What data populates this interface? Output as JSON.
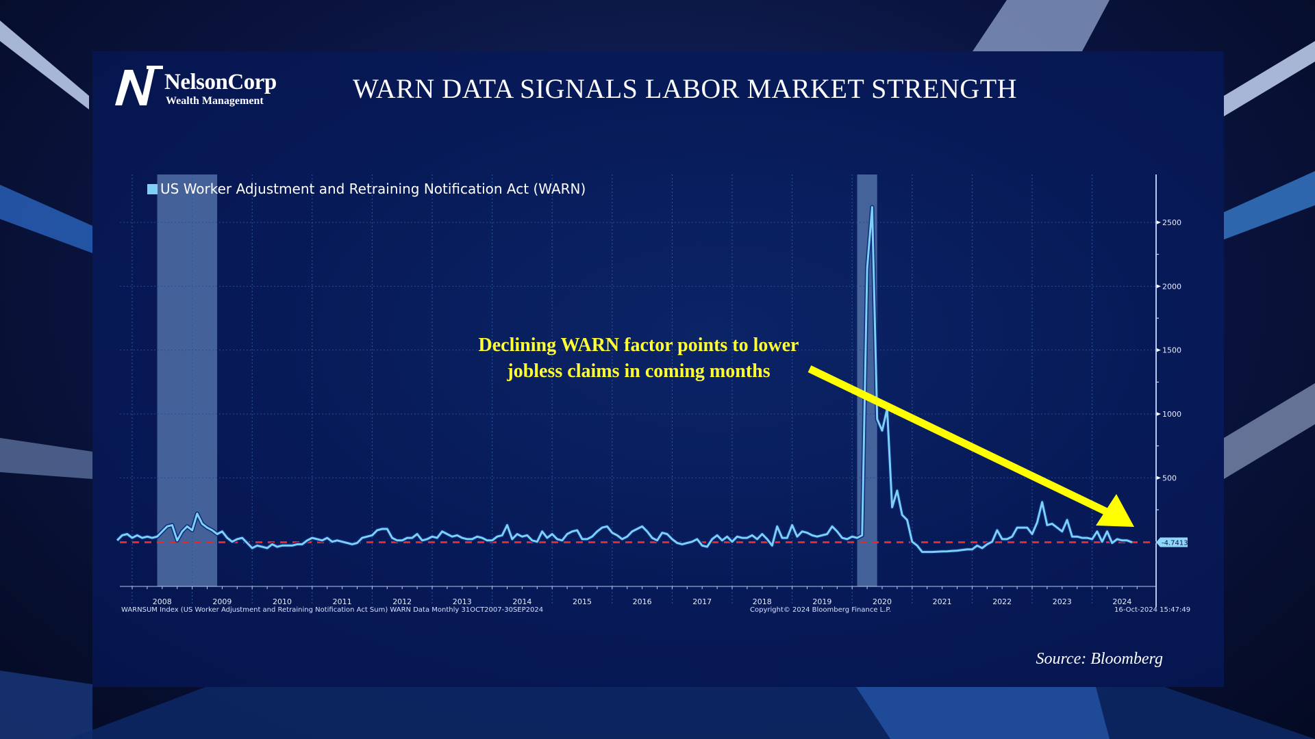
{
  "logo": {
    "name": "NelsonCorp",
    "subtitle": "Wealth Management"
  },
  "title": "WARN DATA SIGNALS LABOR MARKET STRENGTH",
  "annotation": {
    "line1": "Declining WARN factor points to lower",
    "line2": "jobless claims in coming months"
  },
  "source": "Source: Bloomberg",
  "footer": {
    "index_desc": "WARNSUM Index (US Worker Adjustment and Retraining Notification Act Sum) WARN Data  Monthly 31OCT2007-30SEP2024",
    "copyright": "Copyright© 2024 Bloomberg Finance L.P.",
    "timestamp": "16-Oct-2024 15:47:49"
  },
  "colors": {
    "line": "#7fd0f5",
    "reference": "#e8262b",
    "annotation": "#ffff33",
    "shading": "#5a7bb0",
    "background": "#06144c"
  },
  "chart_data": {
    "type": "line",
    "title": "",
    "legend_position": "top-left",
    "series": [
      {
        "name": "US Worker Adjustment and Retraining Notification Act (WARN)",
        "frequency": "monthly",
        "start": "2007-10",
        "values": [
          10,
          50,
          60,
          30,
          50,
          30,
          40,
          30,
          40,
          80,
          120,
          130,
          10,
          80,
          120,
          90,
          220,
          140,
          110,
          90,
          60,
          80,
          30,
          0,
          20,
          30,
          -10,
          -50,
          -30,
          -40,
          -50,
          -20,
          -40,
          -30,
          -30,
          -30,
          -20,
          -20,
          10,
          30,
          20,
          10,
          30,
          0,
          10,
          0,
          -10,
          -20,
          -10,
          30,
          40,
          50,
          90,
          100,
          100,
          30,
          10,
          10,
          30,
          30,
          60,
          10,
          20,
          40,
          30,
          80,
          60,
          40,
          50,
          30,
          20,
          20,
          40,
          30,
          10,
          10,
          40,
          50,
          130,
          20,
          60,
          40,
          50,
          10,
          0,
          80,
          30,
          60,
          20,
          10,
          60,
          80,
          90,
          20,
          20,
          40,
          80,
          110,
          120,
          70,
          50,
          20,
          40,
          80,
          100,
          120,
          80,
          30,
          10,
          70,
          60,
          20,
          -10,
          -20,
          -10,
          0,
          20,
          -30,
          -40,
          20,
          50,
          10,
          40,
          0,
          40,
          30,
          30,
          50,
          20,
          60,
          20,
          -30,
          120,
          30,
          30,
          130,
          40,
          80,
          70,
          50,
          40,
          50,
          60,
          120,
          80,
          30,
          20,
          40,
          30,
          50,
          2140,
          2620,
          960,
          870,
          1040,
          270,
          400,
          210,
          170,
          0,
          -30,
          -80,
          -80,
          -80,
          -78,
          -76,
          -75,
          -72,
          -70,
          -65,
          -60,
          -60,
          -30,
          -50,
          -20,
          0,
          90,
          20,
          20,
          40,
          110,
          110,
          110,
          60,
          150,
          310,
          130,
          140,
          110,
          80,
          170,
          40,
          40,
          30,
          30,
          20,
          80,
          0,
          80,
          -10,
          20,
          10,
          10,
          -4.7413
        ]
      }
    ],
    "last_value_label": "-4.7413",
    "reference_line": -4.7413,
    "shaded_periods": [
      [
        "2008-06",
        "2009-06"
      ],
      [
        "2020-02",
        "2020-06"
      ]
    ],
    "x_tick_labels": [
      "2008",
      "2009",
      "2010",
      "2011",
      "2012",
      "2013",
      "2014",
      "2015",
      "2016",
      "2017",
      "2018",
      "2019",
      "2020",
      "2021",
      "2022",
      "2023",
      "2024"
    ],
    "y_ticks": [
      500,
      1000,
      1500,
      2000,
      2500
    ],
    "y_tick_labels": [
      "500",
      "1000",
      "1500",
      "2000",
      "2500"
    ],
    "ylim": [
      -350,
      2875
    ],
    "y_axis_side": "right",
    "grid": true
  }
}
